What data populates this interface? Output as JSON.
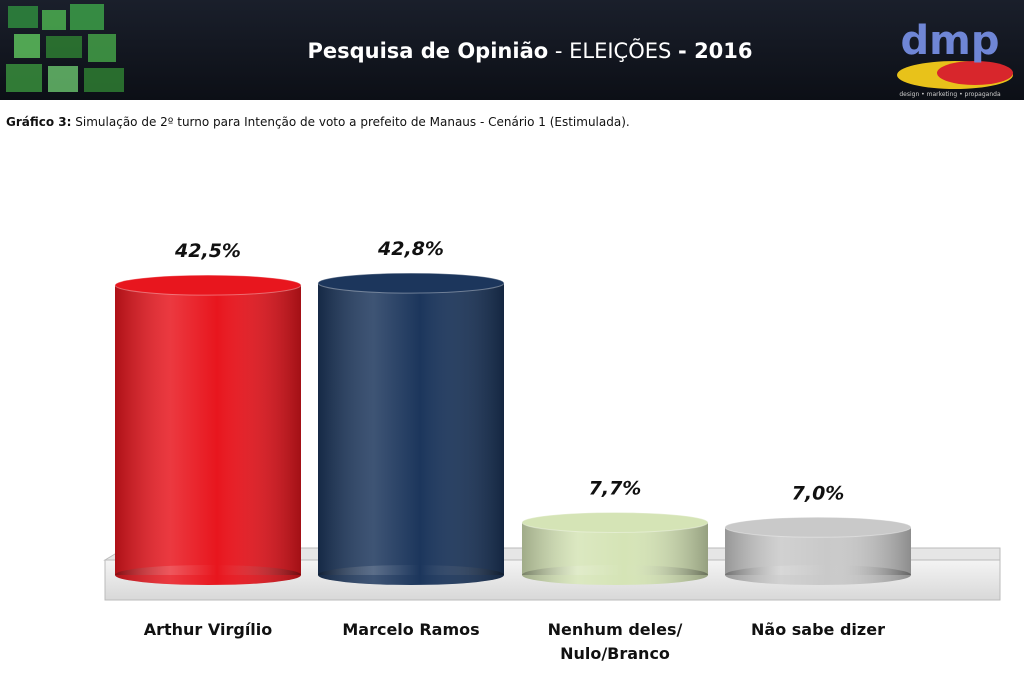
{
  "header": {
    "title_parts": [
      "Pesquisa de Opinião",
      "-",
      "ELEIÇÕES",
      "- 2016"
    ],
    "logo": {
      "text": "dmp",
      "tagline": "design • marketing • propaganda"
    }
  },
  "chart_data": {
    "type": "bar",
    "subtitle_label": "Gráfico 3:",
    "subtitle": "Simulação de 2º turno para Intenção de voto a prefeito de Manaus - Cenário 1 (Estimulada).",
    "categories": [
      "Arthur Virgílio",
      "Marcelo Ramos",
      "Nenhum deles/\nNulo/Branco",
      "Não sabe dizer"
    ],
    "values": [
      42.5,
      42.8,
      7.7,
      7.0
    ],
    "value_labels": [
      "42,5%",
      "42,8%",
      "7,7%",
      "7,0%"
    ],
    "colors": [
      "#e8161e",
      "#1c365c",
      "#d5e4b6",
      "#c9c9c9"
    ]
  }
}
